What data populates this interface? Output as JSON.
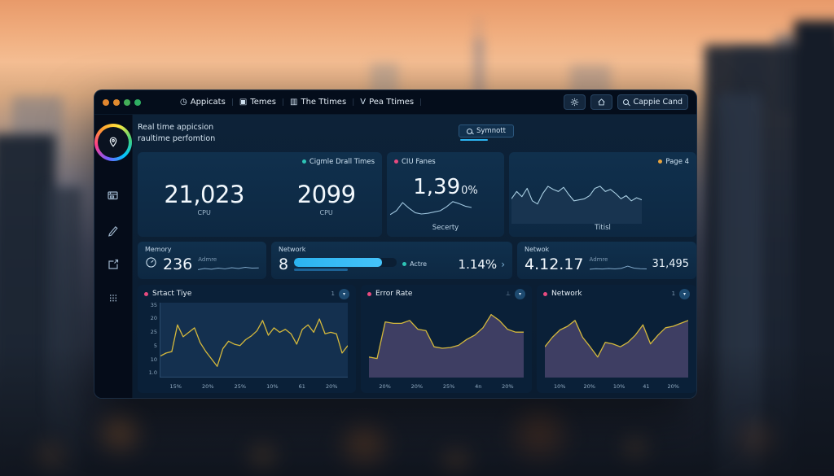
{
  "colors": {
    "accent_blue": "#2bb3f0",
    "line_yellow": "#d4b83c",
    "dot_teal": "#2ec4b6",
    "dot_pink": "#e84a7f",
    "dot_orange": "#e8a33d",
    "window_controls": [
      "#e0862f",
      "#e08a2f",
      "#43ae58",
      "#2fae62"
    ]
  },
  "window": {
    "menu": [
      {
        "icon": "◷",
        "label": "Appicats"
      },
      {
        "icon": "▣",
        "label": "Temes"
      },
      {
        "icon": "▥",
        "label": "The Ttimes"
      },
      {
        "icon": "Ⅴ",
        "label": "Pea Ttimes"
      }
    ],
    "actions": {
      "search_label": "Cappie Cand"
    }
  },
  "header": {
    "title_line1": "Real time appicsion",
    "title_line2": "raultime perfomtion",
    "summon_label": "Symnott"
  },
  "overview_card": {
    "legend": "Cigmle Drall Times",
    "stats": [
      {
        "value": "21,023",
        "label": "CPU"
      },
      {
        "value": "2099",
        "label": "CPU"
      }
    ]
  },
  "ciu_card": {
    "legend": "CIU Fanes",
    "value": "1,39",
    "unit": "0%",
    "footer": "Secerty"
  },
  "page4_card": {
    "legend": "Page 4",
    "footer": "Titisl"
  },
  "memory_card": {
    "title": "Memory",
    "value": "236",
    "sub_label": "Admre"
  },
  "network_card": {
    "title": "Network",
    "value": "8",
    "status_label": "Actre",
    "percent": "1.14%",
    "chevron": "›"
  },
  "netwok_card": {
    "title": "Netwok",
    "value": "4.12.17",
    "sub_label": "Admre",
    "right_value": "31,495"
  },
  "icons": {
    "circle_button": "▾"
  },
  "chart_data": [
    {
      "id": "ciu-spark",
      "type": "line",
      "color": "#9fc6df",
      "stroke_width": 1.1,
      "values": [
        18,
        30,
        55,
        38,
        24,
        20,
        22,
        26,
        30,
        42,
        58,
        52,
        44,
        40
      ]
    },
    {
      "id": "page4-area",
      "type": "area",
      "color": "#a9cfe3",
      "fill": "rgba(26,54,82,0.85)",
      "stroke_width": 1.1,
      "values": [
        48,
        62,
        52,
        68,
        44,
        38,
        58,
        72,
        66,
        62,
        70,
        56,
        44,
        46,
        48,
        54,
        68,
        72,
        62,
        66,
        58,
        48,
        54,
        44,
        50,
        46
      ]
    },
    {
      "id": "memory-spark",
      "type": "line",
      "color": "#7fa8c9",
      "stroke_width": 1,
      "values": [
        30,
        42,
        34,
        46,
        38,
        50,
        42,
        54,
        46,
        48
      ]
    },
    {
      "id": "netwok-spark",
      "type": "line",
      "color": "#7fa8c9",
      "stroke_width": 1,
      "values": [
        34,
        40,
        36,
        42,
        38,
        44,
        66,
        46,
        40,
        38
      ]
    },
    {
      "id": "start-time",
      "type": "line",
      "title": "Srtact Tiye",
      "badge": "1",
      "color": "#d4b83c",
      "stroke_width": 1.3,
      "y_ticks": [
        "35",
        "20",
        "25",
        "5",
        "10",
        "1.0"
      ],
      "x_ticks": [
        "15%",
        "20%",
        "25%",
        "10%",
        "61",
        "20%"
      ],
      "values": [
        28,
        32,
        34,
        70,
        54,
        60,
        66,
        46,
        34,
        24,
        14,
        38,
        48,
        44,
        42,
        50,
        55,
        62,
        76,
        56,
        66,
        60,
        64,
        58,
        44,
        64,
        70,
        60,
        78,
        58,
        60,
        58,
        32,
        42
      ]
    },
    {
      "id": "error-rate",
      "type": "area",
      "title": "Error Rate",
      "badge": "⊥",
      "color": "#d4b83c",
      "fill": "#3e3e63",
      "stroke_width": 1.3,
      "x_ticks": [
        "20%",
        "20%",
        "25%",
        "4n",
        "20%"
      ],
      "values": [
        28,
        26,
        76,
        74,
        74,
        78,
        66,
        64,
        42,
        40,
        41,
        44,
        52,
        58,
        68,
        86,
        78,
        66,
        62,
        62
      ]
    },
    {
      "id": "network-bottom",
      "type": "area",
      "title": "Network",
      "badge": "1",
      "color": "#d4b83c",
      "fill": "#3e3e63",
      "stroke_width": 1.3,
      "x_ticks": [
        "10%",
        "20%",
        "10%",
        "41",
        "20%"
      ],
      "values": [
        42,
        55,
        65,
        70,
        78,
        55,
        42,
        28,
        48,
        46,
        42,
        48,
        58,
        72,
        46,
        58,
        68,
        70,
        74,
        78
      ]
    }
  ]
}
